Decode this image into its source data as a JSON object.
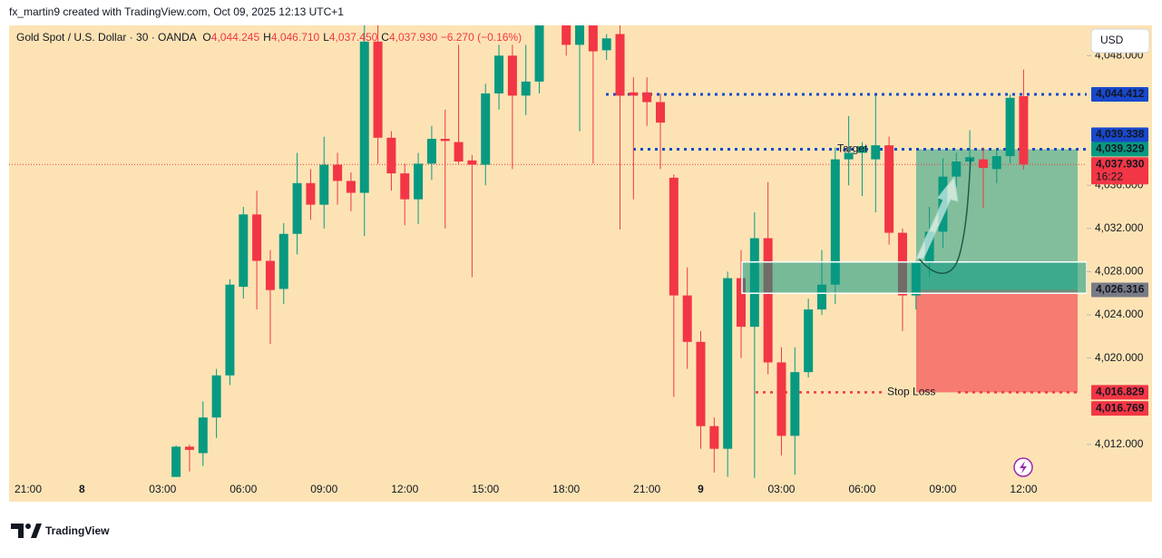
{
  "header": "fx_martin9 created with TradingView.com, Oct 09, 2025 12:13 UTC+1",
  "brand": "TradingView",
  "chart_data": {
    "type": "candlestick",
    "title": "Gold Spot / U.S. Dollar · 30 · OANDA",
    "legend": [
      {
        "label": "O",
        "value": 4044.245,
        "value_label": "4,044.245"
      },
      {
        "label": "H",
        "value": 4046.71,
        "value_label": "4,046.710"
      },
      {
        "label": "L",
        "value": 4037.45,
        "value_label": "4,037.450"
      },
      {
        "label": "C",
        "value": 4037.93,
        "value_label": "4,037.930"
      }
    ],
    "change": "−6.270 (−0.16%)",
    "currency": "USD",
    "up_color": "#089981",
    "down_color": "#f23645",
    "categories": [
      "21:00",
      null,
      null,
      null,
      "8",
      null,
      null,
      null,
      null,
      null,
      "03:00",
      null,
      null,
      null,
      null,
      null,
      "06:00",
      null,
      null,
      null,
      null,
      null,
      "09:00",
      null,
      null,
      null,
      null,
      null,
      "12:00",
      null,
      null,
      null,
      null,
      null,
      "15:00",
      null,
      null,
      null,
      null,
      null,
      "18:00",
      null,
      null,
      null,
      null,
      null,
      "21:00",
      null,
      null,
      null,
      "9",
      null,
      null,
      null,
      null,
      null,
      "03:00",
      null,
      null,
      null,
      null,
      null,
      "06:00",
      null,
      null,
      null,
      null,
      null,
      "09:00",
      null,
      null,
      null,
      null,
      null,
      "12:00"
    ],
    "open": [
      null,
      null,
      null,
      null,
      null,
      null,
      null,
      null,
      null,
      null,
      null,
      4009.0,
      4011.8,
      4011.2,
      4014.5,
      4018.4,
      4026.6,
      4033.3,
      4029.0,
      4026.4,
      4031.5,
      4036.2,
      4034.2,
      4037.9,
      4036.4,
      4035.3,
      4049.3,
      4040.4,
      4037.1,
      4034.7,
      4038.0,
      4040.3,
      4040.0,
      4038.3,
      4037.9,
      4044.5,
      4048.0,
      4044.3,
      4045.6,
      4051.2,
      4052.5,
      4049.0,
      4051.0,
      4048.5,
      4050.0,
      4044.6,
      4044.6,
      4043.7,
      4036.7,
      4025.8,
      4021.5,
      4013.7,
      4011.6,
      4027.4,
      4022.9,
      4031.1,
      4019.6,
      4012.8,
      4018.7,
      4024.5,
      4026.8,
      4038.4,
      4039.0,
      4038.4,
      4039.7,
      4031.6,
      4025.8,
      4028.8,
      4031.7,
      4036.8,
      4038.2,
      4038.4,
      4037.5,
      4038.7,
      4044.245
    ],
    "high": [
      null,
      null,
      null,
      null,
      null,
      null,
      null,
      null,
      null,
      null,
      null,
      4011.9,
      4012.0,
      4016.0,
      4019.0,
      4027.3,
      4034.0,
      4035.5,
      4030.0,
      4032.5,
      4039.0,
      4037.5,
      4040.5,
      4039.0,
      4037.2,
      4051.0,
      4050.8,
      4041.0,
      4038.0,
      4039.0,
      4041.5,
      4043.0,
      4049.0,
      4038.8,
      4045.4,
      4049.0,
      4049.0,
      4049.0,
      4051.5,
      4053.0,
      4052.8,
      4051.5,
      4051.5,
      4050.0,
      4050.8,
      4046.0,
      4046.0,
      4044.5,
      4037.0,
      4028.4,
      4022.5,
      4014.5,
      4028.0,
      4030.0,
      4033.5,
      4036.3,
      4021.0,
      4021.0,
      4025.5,
      4030.0,
      4039.5,
      4042.4,
      4040.0,
      4044.3,
      4040.5,
      4032.0,
      4029.0,
      4034.0,
      4038.5,
      4039.0,
      4041.1,
      4039.5,
      4039.4,
      4044.4,
      4046.71
    ],
    "low": [
      null,
      null,
      null,
      null,
      null,
      null,
      null,
      null,
      null,
      null,
      null,
      4009.0,
      4009.5,
      4010.0,
      4012.6,
      4017.5,
      4025.5,
      4024.5,
      4021.3,
      4025.0,
      4029.6,
      4032.8,
      4032.0,
      4034.2,
      4033.6,
      4031.3,
      4038.0,
      4035.5,
      4032.3,
      4032.4,
      4036.5,
      4032.0,
      4038.0,
      4027.5,
      4036.0,
      4043.0,
      4037.5,
      4042.5,
      4044.5,
      4050.9,
      4048.0,
      4041.0,
      4038.0,
      4047.6,
      4031.9,
      4034.7,
      4041.5,
      4037.5,
      4016.4,
      4019.0,
      4011.6,
      4009.4,
      4009.0,
      4020.0,
      4008.9,
      4018.5,
      4011.0,
      4009.2,
      4018.2,
      4024.0,
      4025.0,
      4036.0,
      4035.0,
      4033.5,
      4030.5,
      4022.5,
      4024.5,
      4027.5,
      4030.2,
      4035.8,
      4037.5,
      4033.9,
      4036.2,
      4038.0,
      4037.45
    ],
    "close": [
      null,
      null,
      null,
      null,
      null,
      null,
      null,
      null,
      null,
      null,
      null,
      4011.8,
      4011.5,
      4014.5,
      4018.4,
      4026.8,
      4033.3,
      4029.0,
      4026.3,
      4031.5,
      4036.2,
      4034.2,
      4037.9,
      4036.4,
      4035.3,
      4049.3,
      4040.4,
      4037.1,
      4034.7,
      4038.0,
      4040.3,
      4040.1,
      4038.2,
      4037.9,
      4044.5,
      4048.0,
      4044.3,
      4045.6,
      4051.2,
      4052.5,
      4049.0,
      4051.0,
      4048.4,
      4049.6,
      4044.3,
      4044.3,
      4043.7,
      4041.8,
      4025.8,
      4021.5,
      4013.7,
      4011.6,
      4027.4,
      4022.9,
      4031.1,
      4019.6,
      4012.8,
      4018.7,
      4024.5,
      4026.8,
      4038.4,
      4039.0,
      4039.6,
      4039.7,
      4031.6,
      4025.8,
      4028.8,
      4031.7,
      4036.8,
      4038.2,
      4038.6,
      4037.6,
      4038.7,
      4044.1,
      4037.93
    ],
    "ylim": [
      4008.8,
      4050.8
    ],
    "yticks": [
      {
        "value": 4048,
        "label": "4,048.000"
      },
      {
        "value": 4036,
        "label": "4,036.000"
      },
      {
        "value": 4032,
        "label": "4,032.000"
      },
      {
        "value": 4028,
        "label": "4,028.000"
      },
      {
        "value": 4024,
        "label": "4,024.000"
      },
      {
        "value": 4020,
        "label": "4,020.000"
      },
      {
        "value": 4012,
        "label": "4,012.000"
      }
    ],
    "price_labels": [
      {
        "value": 4044.412,
        "label": "4,044.412",
        "color": "#1848cc"
      },
      {
        "value": 4039.338,
        "label": "4,039.338",
        "color": "#1848cc"
      },
      {
        "value": 4039.329,
        "label": "4,039.329",
        "color": "#089981"
      },
      {
        "value": 4037.93,
        "label": "4,037.930",
        "color": "#f23645",
        "countdown": "16:22"
      },
      {
        "value": 4026.316,
        "label": "4,026.316",
        "color": "#787b86"
      },
      {
        "value": 4016.829,
        "label": "4,016.829",
        "color": "#f23645"
      },
      {
        "value": 4016.769,
        "label": "4,016.769",
        "color": "#f23645"
      }
    ],
    "zone": {
      "top": 4028.9,
      "bottom": 4026.0
    },
    "annotations": [
      "Target",
      "Stop Loss"
    ]
  }
}
